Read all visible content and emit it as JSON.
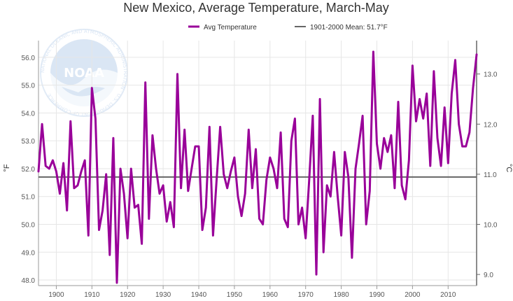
{
  "chart_data": {
    "type": "line",
    "title": "New Mexico, Average Temperature, March-May",
    "legend": {
      "placement": "top-center"
    },
    "series": [
      {
        "name": "Avg Temperature",
        "color": "#990099",
        "x": [
          1895,
          1896,
          1897,
          1898,
          1899,
          1900,
          1901,
          1902,
          1903,
          1904,
          1905,
          1906,
          1907,
          1908,
          1909,
          1910,
          1911,
          1912,
          1913,
          1914,
          1915,
          1916,
          1917,
          1918,
          1919,
          1920,
          1921,
          1922,
          1923,
          1924,
          1925,
          1926,
          1927,
          1928,
          1929,
          1930,
          1931,
          1932,
          1933,
          1934,
          1935,
          1936,
          1937,
          1938,
          1939,
          1940,
          1941,
          1942,
          1943,
          1944,
          1945,
          1946,
          1947,
          1948,
          1949,
          1950,
          1951,
          1952,
          1953,
          1954,
          1955,
          1956,
          1957,
          1958,
          1959,
          1960,
          1961,
          1962,
          1963,
          1964,
          1965,
          1966,
          1967,
          1968,
          1969,
          1970,
          1971,
          1972,
          1973,
          1974,
          1975,
          1976,
          1977,
          1978,
          1979,
          1980,
          1981,
          1982,
          1983,
          1984,
          1985,
          1986,
          1987,
          1988,
          1989,
          1990,
          1991,
          1992,
          1993,
          1994,
          1995,
          1996,
          1997,
          1998,
          1999,
          2000,
          2001,
          2002,
          2003,
          2004,
          2005,
          2006,
          2007,
          2008,
          2009,
          2010,
          2011,
          2012,
          2013,
          2014,
          2015,
          2016,
          2017,
          2018
        ],
        "values": [
          51.9,
          53.6,
          52.1,
          52.0,
          52.3,
          51.9,
          51.1,
          52.2,
          50.5,
          53.7,
          51.3,
          51.4,
          51.9,
          52.3,
          49.6,
          54.9,
          53.8,
          49.8,
          50.5,
          51.8,
          48.9,
          53.1,
          47.9,
          52.0,
          51.1,
          49.5,
          52.0,
          50.6,
          50.7,
          49.3,
          55.1,
          50.2,
          53.2,
          52.0,
          51.1,
          51.4,
          50.1,
          50.8,
          49.9,
          55.4,
          51.3,
          53.4,
          51.2,
          52.0,
          52.8,
          52.8,
          49.8,
          50.6,
          53.5,
          49.6,
          51.6,
          53.5,
          51.8,
          51.3,
          51.9,
          52.4,
          51.0,
          50.3,
          51.1,
          53.4,
          51.3,
          52.7,
          50.2,
          50.0,
          51.6,
          52.4,
          52.0,
          51.3,
          53.3,
          50.2,
          49.9,
          53.0,
          53.8,
          50.0,
          50.6,
          49.5,
          51.6,
          53.9,
          48.2,
          54.5,
          49.0,
          51.4,
          51.0,
          52.6,
          51.0,
          49.6,
          52.6,
          51.7,
          48.8,
          52.0,
          52.9,
          53.9,
          50.0,
          51.2,
          56.2,
          52.9,
          52.0,
          53.1,
          52.6,
          53.2,
          51.3,
          54.4,
          51.4,
          50.9,
          52.3,
          55.7,
          53.7,
          54.5,
          53.8,
          54.7,
          52.1,
          55.5,
          53.1,
          52.1,
          54.2,
          52.2,
          54.7,
          55.9,
          53.6,
          52.8,
          52.8,
          53.3,
          54.9,
          56.1
        ]
      },
      {
        "name": "1901-2000 Mean: 51.7°F",
        "color": "#666666",
        "type": "hline",
        "value": 51.7
      }
    ],
    "xlim": [
      1895,
      2018
    ],
    "x_ticks": [
      1900,
      1910,
      1920,
      1930,
      1940,
      1950,
      1960,
      1970,
      1980,
      1990,
      2000,
      2010
    ],
    "y_left": {
      "label": "°F",
      "ylim": [
        47.8,
        56.6
      ],
      "ticks": [
        "48.0",
        "49.0",
        "50.0",
        "51.0",
        "52.0",
        "53.0",
        "54.0",
        "55.0",
        "56.0"
      ]
    },
    "y_right": {
      "label": "°C",
      "ticks": [
        "9.0",
        "10.0",
        "11.0",
        "12.0",
        "13.0"
      ]
    },
    "grid": true
  },
  "logo": {
    "name": "noaa-logo",
    "text": "NOAA",
    "ring_text": "NATIONAL OCEANIC AND ATMOSPHERIC ADMINISTRATION · U.S. DEPARTMENT OF COMMERCE"
  }
}
